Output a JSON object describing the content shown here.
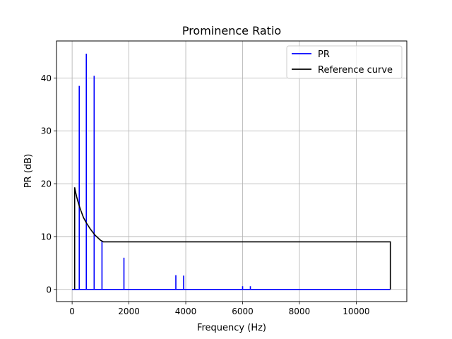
{
  "chart_data": {
    "type": "line",
    "title": "Prominence Ratio",
    "xlabel": "Frequency (Hz)",
    "ylabel": "PR (dB)",
    "xlim": [
      -550,
      11780
    ],
    "ylim": [
      -2.3,
      47.0
    ],
    "xticks": [
      0,
      2000,
      4000,
      6000,
      8000,
      10000
    ],
    "xtick_labels": [
      "0",
      "2000",
      "4000",
      "6000",
      "8000",
      "10000"
    ],
    "yticks": [
      0,
      10,
      20,
      30,
      40
    ],
    "ytick_labels": [
      "0",
      "10",
      "20",
      "30",
      "40"
    ],
    "grid": true,
    "legend": "top-right",
    "series": [
      {
        "name": "PR",
        "color": "#0000ff",
        "x": [
          0,
          250,
          250,
          250,
          500,
          500,
          500,
          775,
          775,
          775,
          1050,
          1050,
          1050,
          1825,
          1825,
          1825,
          3650,
          3650,
          3650,
          3925,
          3925,
          3925,
          6000,
          6000,
          6000,
          6275,
          6275,
          6275,
          11200
        ],
        "y": [
          0,
          0,
          38.5,
          0,
          0,
          44.6,
          0,
          0,
          40.4,
          0,
          0,
          9.2,
          0,
          0,
          6.0,
          0,
          0,
          2.7,
          0,
          0,
          2.6,
          0,
          0,
          0.6,
          0,
          0,
          0.6,
          0,
          0
        ]
      },
      {
        "name": "Reference curve",
        "color": "#000000",
        "x": [
          89.1,
          89.1,
          100,
          125,
          160,
          200,
          250,
          315,
          400,
          500,
          630,
          800,
          1000,
          1100,
          11200,
          11200
        ],
        "y": [
          0,
          19.3,
          19.0,
          18.3,
          17.5,
          16.7,
          15.8,
          14.8,
          13.6,
          12.6,
          11.5,
          10.3,
          9.3,
          9.0,
          9.0,
          0
        ]
      }
    ]
  }
}
